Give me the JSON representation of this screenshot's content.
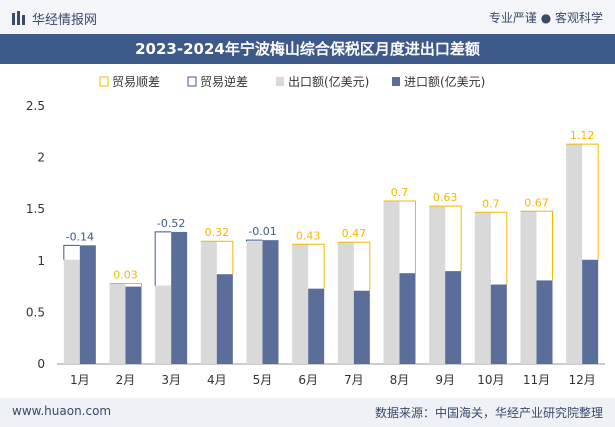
{
  "header": {
    "site_name": "华经情报网",
    "slogan": "专业严谨 ● 客观科学"
  },
  "footer": {
    "url": "www.huaon.com",
    "source": "数据来源：中国海关，华经产业研究院整理"
  },
  "colors": {
    "export": "#d9d9d9",
    "import": "#5b6e9a",
    "surplus": "#f5b800",
    "deficit": "#3d5a8a",
    "title_bg": "#3d5a8a"
  },
  "chart_data": {
    "type": "bar",
    "title": "2023-2024年宁波梅山综合保税区月度进出口差额",
    "categories": [
      "1月",
      "2月",
      "3月",
      "4月",
      "5月",
      "6月",
      "7月",
      "8月",
      "9月",
      "10月",
      "11月",
      "12月"
    ],
    "series": [
      {
        "name": "出口额(亿美元)",
        "values": [
          1.01,
          0.78,
          0.76,
          1.19,
          1.19,
          1.16,
          1.18,
          1.58,
          1.53,
          1.47,
          1.48,
          2.13
        ]
      },
      {
        "name": "进口额(亿美元)",
        "values": [
          1.15,
          0.75,
          1.28,
          0.87,
          1.2,
          0.73,
          0.71,
          0.88,
          0.9,
          0.77,
          0.81,
          1.01
        ]
      }
    ],
    "balance": {
      "surplus_name": "贸易顺差",
      "deficit_name": "贸易逆差",
      "labels": [
        "-0.14",
        "0.03",
        "-0.52",
        "0.32",
        "-0.01",
        "0.43",
        "0.47",
        "0.7",
        "0.63",
        "0.7",
        "0.67",
        "1.12"
      ]
    },
    "ylim": [
      0,
      2.5
    ],
    "yticks": [
      "0",
      "0.5",
      "1",
      "1.5",
      "2",
      "2.5"
    ],
    "legend": "top-center",
    "grid": false
  }
}
